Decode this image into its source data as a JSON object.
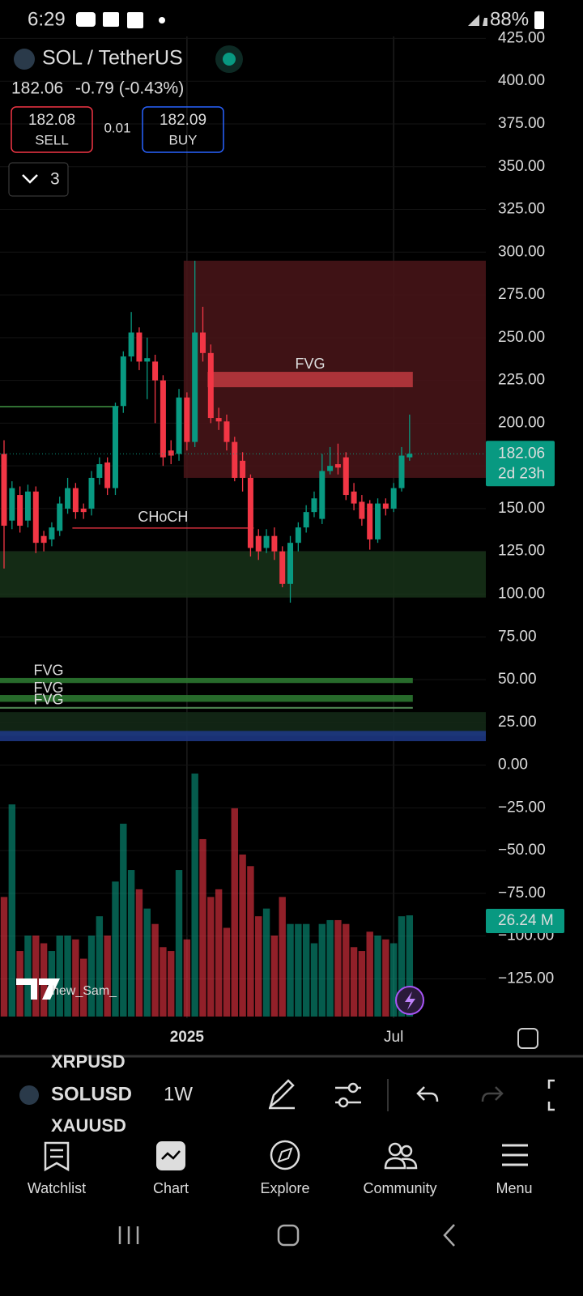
{
  "status_bar": {
    "time": "6:29",
    "battery": "88%"
  },
  "header": {
    "symbol": "SOL / TetherUS",
    "change": "-0.79 (-0.43%)",
    "sell_price": "182.08",
    "sell": "SELL",
    "spread": "0.01",
    "buy_price": "182.09",
    "buy": "BUY",
    "indicators": "3"
  },
  "chart_data": {
    "type": "candlestick",
    "categories": [
      null,
      null,
      null,
      null,
      null,
      null,
      null,
      null,
      null,
      null,
      null,
      null,
      null,
      null,
      null,
      null,
      null,
      null,
      null,
      null,
      null,
      null,
      null,
      "2025",
      null,
      null,
      null,
      null,
      null,
      null,
      null,
      null,
      null,
      null,
      null,
      null,
      null,
      null,
      null,
      null,
      null,
      null,
      null,
      null,
      null,
      null,
      null,
      null,
      null,
      "Jul",
      null,
      null
    ],
    "open": [
      182,
      143,
      158,
      143,
      160,
      134,
      132,
      137,
      150,
      162,
      150,
      150,
      168,
      177,
      162,
      210,
      239,
      253,
      236,
      236,
      225,
      184,
      182,
      215,
      189,
      253,
      241,
      203,
      201,
      189,
      178,
      168,
      134,
      127,
      134,
      125,
      106,
      130,
      139,
      148,
      144,
      172,
      176,
      180,
      160,
      154,
      153,
      132,
      153,
      150,
      162,
      180
    ],
    "high": [
      190,
      166,
      163,
      164,
      163,
      137,
      142,
      157,
      168,
      165,
      153,
      172,
      180,
      180,
      212,
      242,
      265,
      256,
      250,
      240,
      228,
      190,
      220,
      218,
      295,
      268,
      246,
      209,
      205,
      192,
      183,
      170,
      138,
      138,
      139,
      128,
      134,
      142,
      152,
      160,
      182,
      186,
      188,
      183,
      165,
      158,
      155,
      156,
      156,
      165,
      186,
      205
    ],
    "low": [
      115,
      138,
      136,
      139,
      124,
      125,
      128,
      134,
      147,
      144,
      144,
      146,
      164,
      158,
      158,
      206,
      236,
      231,
      214,
      200,
      175,
      176,
      178,
      184,
      186,
      236,
      200,
      196,
      184,
      166,
      160,
      122,
      120,
      124,
      120,
      104,
      95,
      125,
      136,
      145,
      141,
      170,
      170,
      155,
      149,
      140,
      126,
      130,
      146,
      148,
      160,
      178
    ],
    "close": [
      140,
      162,
      140,
      160,
      130,
      130,
      139,
      153,
      162,
      148,
      148,
      168,
      176,
      162,
      210,
      239,
      253,
      236,
      238,
      225,
      180,
      181,
      215,
      189,
      253,
      241,
      203,
      201,
      189,
      168,
      168,
      127,
      125,
      134,
      125,
      106,
      130,
      139,
      148,
      156,
      172,
      175,
      174,
      158,
      153,
      144,
      132,
      153,
      150,
      162,
      181,
      182.06
    ],
    "volume": [
      31,
      55,
      17,
      21,
      21,
      19,
      17,
      21,
      21,
      20,
      15,
      21,
      26,
      21,
      35,
      50,
      38,
      33,
      28,
      24,
      18,
      17,
      38,
      20,
      63,
      46,
      31,
      33,
      23,
      54,
      42,
      39,
      26,
      28,
      21,
      31,
      24,
      24,
      24,
      19,
      24,
      25,
      25,
      24,
      18,
      17,
      22,
      21,
      20,
      19,
      26,
      26.24
    ],
    "volume_label": "26.24 M",
    "countdown": "2d 23h",
    "ylim": [
      -148,
      425.2
    ],
    "yticks": [
      {
        "value": 425,
        "label": "425.00"
      },
      {
        "value": 400,
        "label": "400.00"
      },
      {
        "value": 375,
        "label": "375.00"
      },
      {
        "value": 350,
        "label": "350.00"
      },
      {
        "value": 325,
        "label": "325.00"
      },
      {
        "value": 300,
        "label": "300.00"
      },
      {
        "value": 275,
        "label": "275.00"
      },
      {
        "value": 250,
        "label": "250.00"
      },
      {
        "value": 225,
        "label": "225.00"
      },
      {
        "value": 200,
        "label": "200.00"
      },
      {
        "value": 175,
        "label": "175.00"
      },
      {
        "value": 150,
        "label": "150.00"
      },
      {
        "value": 125,
        "label": "125.00"
      },
      {
        "value": 100,
        "label": "100.00"
      },
      {
        "value": 75,
        "label": "75.00"
      },
      {
        "value": 50,
        "label": "50.00"
      },
      {
        "value": 25,
        "label": "25.00"
      },
      {
        "value": 0,
        "label": "0.00"
      },
      {
        "value": -25,
        "label": "−25.00"
      },
      {
        "value": -50,
        "label": "−50.00"
      },
      {
        "value": -75,
        "label": "−75.00"
      },
      {
        "value": -100,
        "label": "−100.00"
      },
      {
        "value": -125,
        "label": "−125.00"
      }
    ],
    "up_color": "#089981",
    "down_color": "#f23645",
    "grid": true,
    "zones": [
      {
        "from": 23,
        "low": 168,
        "high": 295,
        "color": "#4a1519"
      },
      {
        "from": 26,
        "to": 51,
        "low": 221,
        "high": 230,
        "color": "#c0393f",
        "label": "FVG"
      },
      {
        "from": 0,
        "low": 98,
        "high": 125,
        "color": "#173319"
      },
      {
        "from": 9,
        "to": 31,
        "low": 139,
        "high": 139,
        "color": "#f23645",
        "label": "CHoCH"
      },
      {
        "from": 0,
        "low": 17,
        "high": 31,
        "color": "#142a17"
      },
      {
        "from": 0,
        "low": 14,
        "high": 20,
        "color": "#1e3a8a"
      },
      {
        "from": 0,
        "to": 51,
        "low": 48,
        "high": 51,
        "color": "#2e7d32",
        "label": "FVG"
      },
      {
        "from": 0,
        "to": 51,
        "low": 37,
        "high": 41,
        "color": "#2e7d32",
        "label": "FVG"
      },
      {
        "from": 0,
        "to": 51,
        "low": 33,
        "high": 34,
        "color": "#5b9a5e",
        "label": "FVG"
      },
      {
        "from": 0,
        "to": 14,
        "low": 210,
        "high": 210,
        "color": "#4caf50"
      }
    ],
    "watermark": "hew_Sam_"
  },
  "toolbar": {
    "prev_symbol": "XRPUSD",
    "symbol": "SOLUSD",
    "next_symbol": "XAUUSD",
    "interval": "1W"
  },
  "nav": [
    "Watchlist",
    "Chart",
    "Explore",
    "Community",
    "Menu"
  ]
}
